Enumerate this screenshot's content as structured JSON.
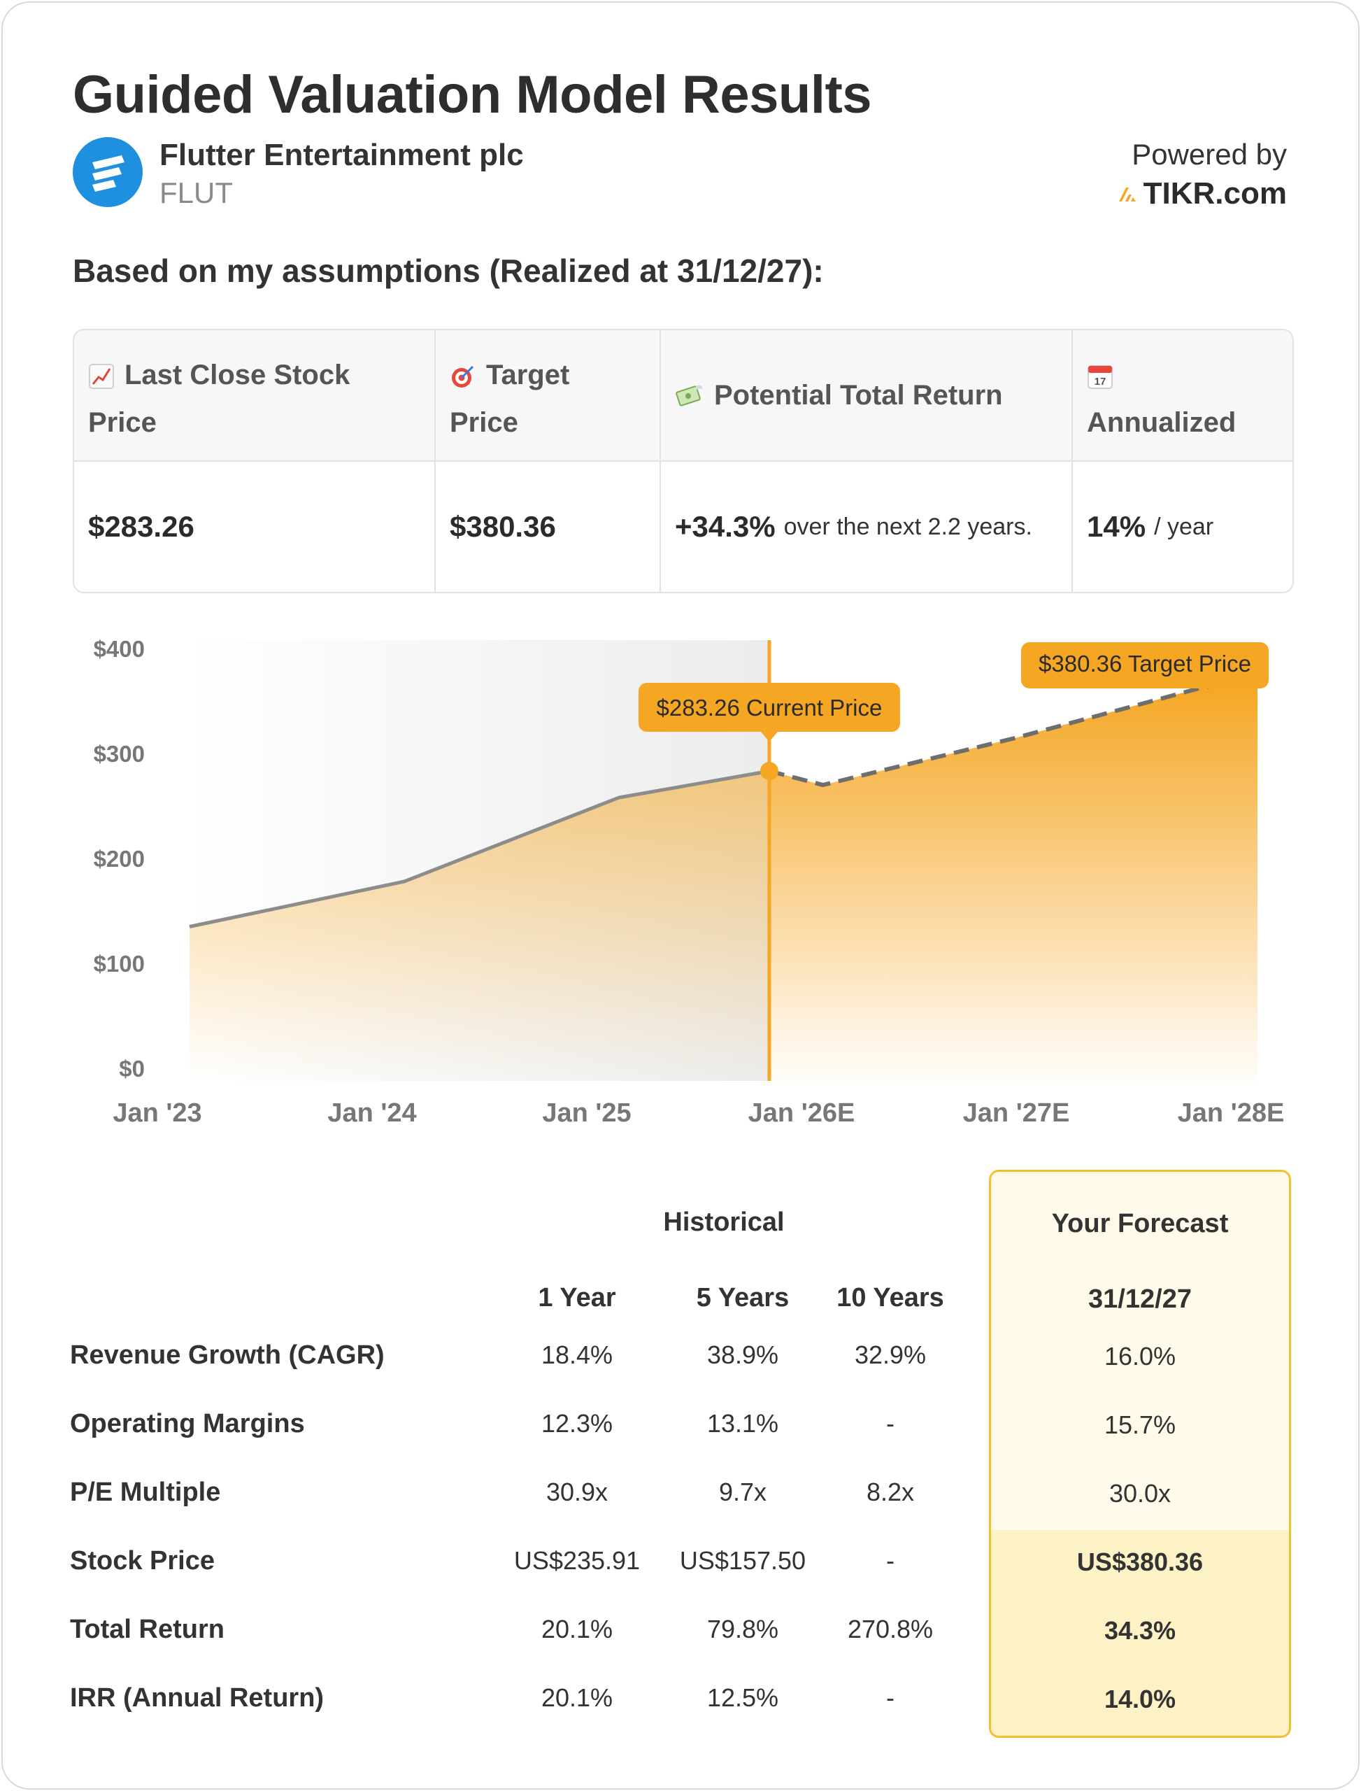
{
  "header": {
    "title": "Guided Valuation Model Results",
    "company_name": "Flutter Entertainment plc",
    "ticker": "FLUT",
    "powered_by": "Powered by",
    "brand": "TIKR.com",
    "subtitle": "Based on my assumptions (Realized at 31/12/27):"
  },
  "metrics": {
    "last_close": {
      "label_line1": "Last Close Stock",
      "label_line2": "Price",
      "icon": "chart-increasing-icon",
      "value": "$283.26"
    },
    "target": {
      "label_line1": "Target",
      "label_line2": "Price",
      "icon": "target-icon",
      "value": "$380.36"
    },
    "total_return": {
      "label": "Potential Total Return",
      "icon": "money-wings-icon",
      "value": "+34.3%",
      "suffix": "over the next 2.2 years."
    },
    "annualized": {
      "label": "Annualized",
      "icon": "calendar-icon",
      "icon_text": "17",
      "value": "14%",
      "suffix": "/ year"
    }
  },
  "chart_data": {
    "type": "area",
    "y_ticks": [
      "$0",
      "$100",
      "$200",
      "$300",
      "$400"
    ],
    "x_ticks": [
      "Jan '23",
      "Jan '24",
      "Jan '25",
      "Jan '26E",
      "Jan '27E",
      "Jan '28E"
    ],
    "ylim": [
      0,
      400
    ],
    "xlim": [
      2023.0,
      2028.0
    ],
    "historical": [
      {
        "x": 2023.15,
        "y": 135
      },
      {
        "x": 2024.15,
        "y": 178
      },
      {
        "x": 2025.15,
        "y": 258
      },
      {
        "x": 2025.85,
        "y": 283.26
      }
    ],
    "forecast": [
      {
        "x": 2025.85,
        "y": 283.26
      },
      {
        "x": 2026.1,
        "y": 270
      },
      {
        "x": 2027.0,
        "y": 315
      },
      {
        "x": 2027.85,
        "y": 362
      },
      {
        "x": 2028.0,
        "y": 368
      }
    ],
    "current_price_label": "$283.26 Current Price",
    "target_price_label": "$380.36 Target Price",
    "accent_color": "#f5a623",
    "historical_line_color": "#8c8c8c"
  },
  "table": {
    "historical_header": "Historical",
    "forecast_header": "Your Forecast",
    "columns": [
      "1 Year",
      "5 Years",
      "10 Years"
    ],
    "forecast_date": "31/12/27",
    "rows": [
      {
        "label": "Revenue Growth (CAGR)",
        "values": [
          "18.4%",
          "38.9%",
          "32.9%"
        ],
        "forecast": "16.0%"
      },
      {
        "label": "Operating Margins",
        "values": [
          "12.3%",
          "13.1%",
          "-"
        ],
        "forecast": "15.7%"
      },
      {
        "label": "P/E Multiple",
        "values": [
          "30.9x",
          "9.7x",
          "8.2x"
        ],
        "forecast": "30.0x"
      },
      {
        "label": "Stock Price",
        "values": [
          "US$235.91",
          "US$157.50",
          "-"
        ],
        "forecast": "US$380.36"
      },
      {
        "label": "Total Return",
        "values": [
          "20.1%",
          "79.8%",
          "270.8%"
        ],
        "forecast": "34.3%"
      },
      {
        "label": "IRR (Annual Return)",
        "values": [
          "20.1%",
          "12.5%",
          "-"
        ],
        "forecast": "14.0%"
      }
    ]
  }
}
